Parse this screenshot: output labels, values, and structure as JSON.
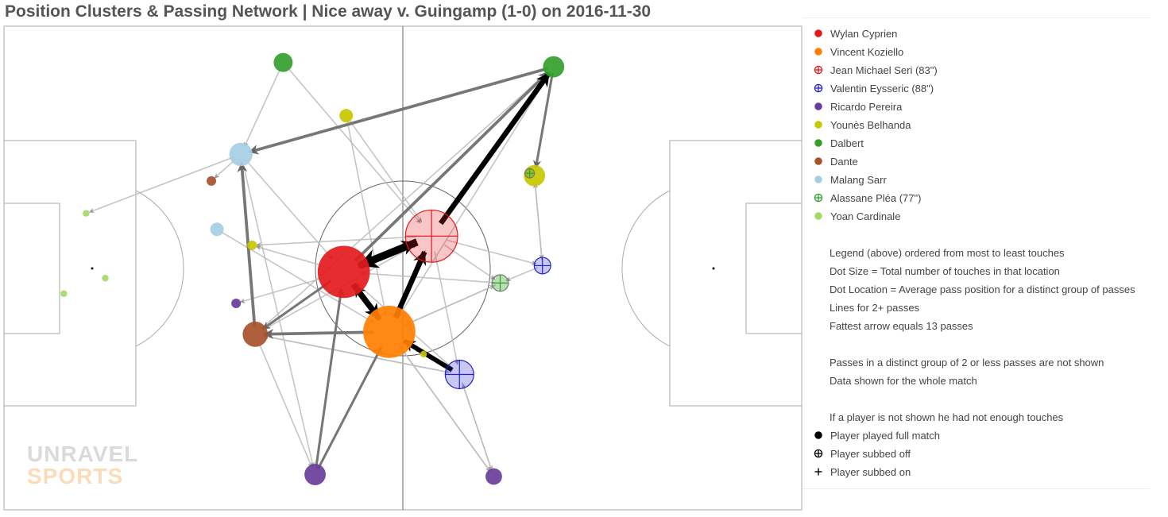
{
  "title": "Position Clusters & Passing Network | Nice away v. Guingamp (1-0) on 2016-11-30",
  "logo": {
    "line1": "UNRAVEL",
    "line2": "SPORTS"
  },
  "colors": {
    "arrow_strong": "#000000",
    "arrow_mid": "#777777",
    "arrow_light": "#bbbbbb",
    "pitch_line": "#aaaaaa"
  },
  "legend": {
    "players": [
      {
        "name": "Wylan Cyprien",
        "color": "#e31a1c",
        "status": "full"
      },
      {
        "name": "Vincent Koziello",
        "color": "#ff7f00",
        "status": "full"
      },
      {
        "name": "Jean Michael Seri (83\")",
        "color": "#e31a1c",
        "status": "off"
      },
      {
        "name": "Valentin Eysseric (88\")",
        "color": "#2222cc",
        "status": "off"
      },
      {
        "name": "Ricardo Pereira",
        "color": "#6a3d9a",
        "status": "full"
      },
      {
        "name": "Younès Belhanda",
        "color": "#c8c800",
        "status": "full"
      },
      {
        "name": "Dalbert",
        "color": "#33a02c",
        "status": "full"
      },
      {
        "name": "Dante",
        "color": "#a6522a",
        "status": "full"
      },
      {
        "name": "Malang Sarr",
        "color": "#a6cee3",
        "status": "full"
      },
      {
        "name": "Alassane Pléa (77\")",
        "color": "#33a02c",
        "status": "off"
      },
      {
        "name": "Yoan Cardinale",
        "color": "#a6d96a",
        "status": "full"
      }
    ],
    "notes": [
      "Legend (above) ordered from most to least touches",
      "Dot Size = Total number of touches in that location",
      "Dot Location = Average pass position for a distinct group of passes",
      "Lines for 2+ passes",
      "Fattest arrow equals 13 passes",
      "",
      "Passes in a distinct group of 2 or less passes are not shown",
      "Data shown for the whole match",
      "",
      "If a player is not shown he had not enough touches"
    ],
    "key": [
      {
        "symbol": "dot",
        "label": "Player played full match"
      },
      {
        "symbol": "crossed-circle",
        "label": "Player subbed off"
      },
      {
        "symbol": "plus",
        "label": "Player subbed on"
      }
    ]
  },
  "chart_data": {
    "type": "scatter",
    "title": "Position Clusters & Passing Network | Nice away v. Guingamp (1-0) on 2016-11-30",
    "x_range": [
      0,
      100
    ],
    "y_range": [
      0,
      100
    ],
    "nodes": [
      {
        "id": "cyprien_1",
        "player": "Wylan Cyprien",
        "x": 42.6,
        "y": 49.2,
        "touches": 30,
        "marker": "full"
      },
      {
        "id": "koziello_1",
        "player": "Vincent Koziello",
        "x": 48.3,
        "y": 36.8,
        "touches": 30,
        "marker": "full"
      },
      {
        "id": "seri_1",
        "player": "Jean Michael Seri (83\")",
        "x": 53.6,
        "y": 56.6,
        "touches": 30,
        "marker": "off"
      },
      {
        "id": "eysseric_1",
        "player": "Valentin Eysseric (88\")",
        "x": 57.1,
        "y": 28.0,
        "touches": 9,
        "marker": "off"
      },
      {
        "id": "eysseric_2",
        "player": "Valentin Eysseric (88\")",
        "x": 67.5,
        "y": 50.5,
        "touches": 3,
        "marker": "off"
      },
      {
        "id": "pereira_1",
        "player": "Ricardo Pereira",
        "x": 39.0,
        "y": 7.3,
        "touches": 5,
        "marker": "full"
      },
      {
        "id": "pereira_2",
        "player": "Ricardo Pereira",
        "x": 61.4,
        "y": 6.9,
        "touches": 3,
        "marker": "full"
      },
      {
        "id": "pereira_3",
        "player": "Ricardo Pereira",
        "x": 29.1,
        "y": 42.7,
        "touches": 1,
        "marker": "full"
      },
      {
        "id": "belhanda_1",
        "player": "Younès Belhanda",
        "x": 66.5,
        "y": 69.1,
        "touches": 5,
        "marker": "full"
      },
      {
        "id": "belhanda_2",
        "player": "Younès Belhanda",
        "x": 42.9,
        "y": 81.5,
        "touches": 2,
        "marker": "full"
      },
      {
        "id": "belhanda_3",
        "player": "Younès Belhanda",
        "x": 31.1,
        "y": 54.7,
        "touches": 1,
        "marker": "full"
      },
      {
        "id": "belhanda_4",
        "player": "Younès Belhanda",
        "x": 52.6,
        "y": 32.2,
        "touches": 0.5,
        "marker": "full"
      },
      {
        "id": "dalbert_1",
        "player": "Dalbert",
        "x": 68.9,
        "y": 91.6,
        "touches": 5,
        "marker": "full"
      },
      {
        "id": "dalbert_2",
        "player": "Dalbert",
        "x": 35.0,
        "y": 92.5,
        "touches": 4,
        "marker": "full"
      },
      {
        "id": "dante_1",
        "player": "Dante",
        "x": 31.5,
        "y": 36.3,
        "touches": 7,
        "marker": "full"
      },
      {
        "id": "dante_2",
        "player": "Dante",
        "x": 26.0,
        "y": 68.0,
        "touches": 1,
        "marker": "full"
      },
      {
        "id": "sarr_1",
        "player": "Malang Sarr",
        "x": 29.7,
        "y": 73.5,
        "touches": 6,
        "marker": "full"
      },
      {
        "id": "sarr_2",
        "player": "Malang Sarr",
        "x": 26.7,
        "y": 58.0,
        "touches": 2,
        "marker": "full"
      },
      {
        "id": "plea_1",
        "player": "Alassane Pléa (77\")",
        "x": 62.2,
        "y": 46.9,
        "touches": 3,
        "marker": "on"
      },
      {
        "id": "plea_2",
        "player": "Alassane Pléa (77\")",
        "x": 65.9,
        "y": 69.6,
        "touches": 1,
        "marker": "on"
      },
      {
        "id": "cardinale_1",
        "player": "Yoan Cardinale",
        "x": 10.3,
        "y": 61.3,
        "touches": 0.5,
        "marker": "full"
      },
      {
        "id": "cardinale_2",
        "player": "Yoan Cardinale",
        "x": 12.7,
        "y": 47.9,
        "touches": 0.5,
        "marker": "full"
      },
      {
        "id": "cardinale_3",
        "player": "Yoan Cardinale",
        "x": 7.5,
        "y": 44.7,
        "touches": 0.5,
        "marker": "full"
      }
    ],
    "passes": [
      {
        "from": "seri_1",
        "to": "cyprien_1",
        "passes": 13
      },
      {
        "from": "cyprien_1",
        "to": "koziello_1",
        "passes": 10
      },
      {
        "from": "cyprien_1",
        "to": "seri_1",
        "passes": 10
      },
      {
        "from": "koziello_1",
        "to": "seri_1",
        "passes": 9
      },
      {
        "from": "seri_1",
        "to": "dalbert_1",
        "passes": 9
      },
      {
        "from": "eysseric_1",
        "to": "koziello_1",
        "passes": 8
      },
      {
        "from": "koziello_1",
        "to": "cyprien_1",
        "passes": 8
      },
      {
        "from": "dalbert_1",
        "to": "sarr_1",
        "passes": 5
      },
      {
        "from": "dante_1",
        "to": "sarr_1",
        "passes": 5
      },
      {
        "from": "cyprien_1",
        "to": "dalbert_1",
        "passes": 5
      },
      {
        "from": "koziello_1",
        "to": "dante_1",
        "passes": 5
      },
      {
        "from": "pereira_1",
        "to": "cyprien_1",
        "passes": 4
      },
      {
        "from": "pereira_1",
        "to": "koziello_1",
        "passes": 4
      },
      {
        "from": "dalbert_1",
        "to": "belhanda_1",
        "passes": 4
      },
      {
        "from": "cyprien_1",
        "to": "dante_1",
        "passes": 4
      },
      {
        "from": "sarr_1",
        "to": "cardinale_1",
        "passes": 2
      },
      {
        "from": "sarr_1",
        "to": "dante_2",
        "passes": 2
      },
      {
        "from": "dalbert_2",
        "to": "sarr_1",
        "passes": 2
      },
      {
        "from": "dalbert_2",
        "to": "seri_1",
        "passes": 2
      },
      {
        "from": "belhanda_2",
        "to": "seri_1",
        "passes": 2
      },
      {
        "from": "belhanda_2",
        "to": "koziello_1",
        "passes": 2
      },
      {
        "from": "sarr_1",
        "to": "cyprien_1",
        "passes": 2
      },
      {
        "from": "sarr_1",
        "to": "pereira_1",
        "passes": 2
      },
      {
        "from": "sarr_2",
        "to": "koziello_1",
        "passes": 2
      },
      {
        "from": "dante_1",
        "to": "pereira_1",
        "passes": 2
      },
      {
        "from": "dante_1",
        "to": "eysseric_1",
        "passes": 2
      },
      {
        "from": "dante_1",
        "to": "seri_1",
        "passes": 2
      },
      {
        "from": "koziello_1",
        "to": "pereira_2",
        "passes": 2
      },
      {
        "from": "koziello_1",
        "to": "plea_1",
        "passes": 2
      },
      {
        "from": "koziello_1",
        "to": "belhanda_4",
        "passes": 2
      },
      {
        "from": "cyprien_1",
        "to": "pereira_3",
        "passes": 2
      },
      {
        "from": "cyprien_1",
        "to": "belhanda_3",
        "passes": 2
      },
      {
        "from": "seri_1",
        "to": "eysseric_1",
        "passes": 2
      },
      {
        "from": "seri_1",
        "to": "eysseric_2",
        "passes": 2
      },
      {
        "from": "seri_1",
        "to": "plea_1",
        "passes": 2
      },
      {
        "from": "seri_1",
        "to": "koziello_1",
        "passes": 2
      },
      {
        "from": "seri_1",
        "to": "belhanda_3",
        "passes": 2
      },
      {
        "from": "eysseric_1",
        "to": "pereira_2",
        "passes": 2
      },
      {
        "from": "eysseric_1",
        "to": "dante_1",
        "passes": 2
      },
      {
        "from": "eysseric_1",
        "to": "cyprien_1",
        "passes": 2
      },
      {
        "from": "eysseric_2",
        "to": "belhanda_1",
        "passes": 2
      },
      {
        "from": "eysseric_2",
        "to": "plea_1",
        "passes": 2
      },
      {
        "from": "belhanda_1",
        "to": "eysseric_2",
        "passes": 2
      },
      {
        "from": "plea_1",
        "to": "koziello_1",
        "passes": 2
      },
      {
        "from": "plea_1",
        "to": "cyprien_1",
        "passes": 2
      },
      {
        "from": "pereira_2",
        "to": "koziello_1",
        "passes": 2
      },
      {
        "from": "pereira_2",
        "to": "eysseric_1",
        "passes": 2
      },
      {
        "from": "dante_1",
        "to": "dalbert_1",
        "passes": 2
      },
      {
        "from": "dalbert_1",
        "to": "koziello_1",
        "passes": 2
      }
    ]
  }
}
